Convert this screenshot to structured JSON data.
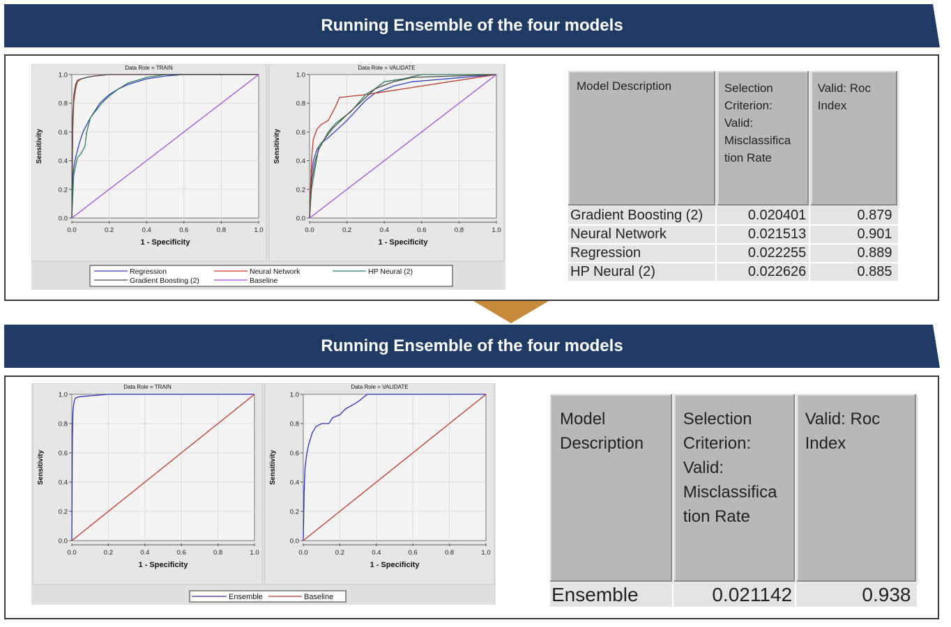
{
  "banners": [
    "Running Ensemble of the four models",
    "Running Ensemble of the four models"
  ],
  "plots": {
    "data_role_train": "Data Role = TRAIN",
    "data_role_validate": "Data Role = VALIDATE",
    "xlabel": "1 - Specificity",
    "ylabel": "Sensitivity",
    "ticks": [
      "0.0",
      "0.2",
      "0.4",
      "0.6",
      "0.8",
      "1.0"
    ]
  },
  "colors": {
    "banner": "#1f3b63",
    "arrow": "#c58a3b",
    "regression": "#2f3fbf",
    "neural_network": "#c0392b",
    "hp_neural": "#2e7d5b",
    "gradient_boosting": "#4a4a4a",
    "baseline": "#a050e0",
    "ensemble": "#2a2abf",
    "ensemble_baseline": "#c0392b"
  },
  "chart_data": [
    {
      "type": "line",
      "title": "Data Role = TRAIN",
      "xlabel": "1 - Specificity",
      "ylabel": "Sensitivity",
      "xlim": [
        0,
        1
      ],
      "ylim": [
        0,
        1
      ],
      "grid": true,
      "series": [
        {
          "name": "Regression",
          "color": "#2f3fbf",
          "x": [
            0,
            0.005,
            0.01,
            0.02,
            0.04,
            0.06,
            0.08,
            0.1,
            0.12,
            0.15,
            0.2,
            0.25,
            0.3,
            0.4,
            0.5,
            0.6,
            1
          ],
          "y": [
            0,
            0.25,
            0.35,
            0.42,
            0.52,
            0.6,
            0.65,
            0.7,
            0.74,
            0.8,
            0.86,
            0.9,
            0.93,
            0.97,
            0.99,
            1,
            1
          ]
        },
        {
          "name": "Neural Network",
          "color": "#c0392b",
          "x": [
            0,
            0.005,
            0.01,
            0.02,
            0.03,
            0.05,
            0.08,
            0.12,
            0.2,
            0.4,
            1
          ],
          "y": [
            0,
            0.6,
            0.8,
            0.9,
            0.95,
            0.97,
            0.98,
            0.99,
            1,
            1,
            1
          ]
        },
        {
          "name": "HP Neural (2)",
          "color": "#2e7d5b",
          "x": [
            0,
            0.01,
            0.03,
            0.05,
            0.07,
            0.08,
            0.1,
            0.13,
            0.16,
            0.2,
            0.25,
            0.3,
            0.4,
            0.5,
            1
          ],
          "y": [
            0,
            0.3,
            0.42,
            0.45,
            0.5,
            0.6,
            0.7,
            0.75,
            0.8,
            0.85,
            0.9,
            0.94,
            0.98,
            1,
            1
          ]
        },
        {
          "name": "Gradient Boosting (2)",
          "color": "#4a4a4a",
          "x": [
            0,
            0.005,
            0.01,
            0.02,
            0.03,
            0.05,
            0.08,
            0.12,
            0.2,
            0.3,
            1
          ],
          "y": [
            0,
            0.7,
            0.85,
            0.93,
            0.96,
            0.97,
            0.98,
            0.99,
            1,
            1,
            1
          ]
        },
        {
          "name": "Baseline",
          "color": "#a050e0",
          "x": [
            0,
            1
          ],
          "y": [
            0,
            1
          ]
        }
      ]
    },
    {
      "type": "line",
      "title": "Data Role = VALIDATE",
      "xlabel": "1 - Specificity",
      "ylabel": "Sensitivity",
      "xlim": [
        0,
        1
      ],
      "ylim": [
        0,
        1
      ],
      "grid": true,
      "series": [
        {
          "name": "Regression",
          "color": "#2f3fbf",
          "x": [
            0,
            0.01,
            0.02,
            0.04,
            0.06,
            0.1,
            0.15,
            0.2,
            0.25,
            0.3,
            0.35,
            0.45,
            0.55,
            1
          ],
          "y": [
            0,
            0.3,
            0.4,
            0.48,
            0.52,
            0.56,
            0.62,
            0.68,
            0.75,
            0.82,
            0.87,
            0.92,
            0.95,
            1
          ]
        },
        {
          "name": "Neural Network",
          "color": "#c0392b",
          "x": [
            0,
            0.01,
            0.02,
            0.04,
            0.06,
            0.1,
            0.14,
            0.16,
            0.3,
            0.5,
            1
          ],
          "y": [
            0,
            0.4,
            0.55,
            0.62,
            0.65,
            0.68,
            0.78,
            0.84,
            0.86,
            0.9,
            1
          ]
        },
        {
          "name": "HP Neural (2)",
          "color": "#2e7d5b",
          "x": [
            0,
            0.01,
            0.03,
            0.05,
            0.08,
            0.1,
            0.14,
            0.18,
            0.22,
            0.26,
            0.3,
            0.35,
            0.4,
            0.5,
            0.6,
            1
          ],
          "y": [
            0,
            0.2,
            0.35,
            0.5,
            0.55,
            0.6,
            0.66,
            0.7,
            0.74,
            0.8,
            0.86,
            0.9,
            0.95,
            0.97,
            1,
            1
          ]
        },
        {
          "name": "Gradient Boosting (2)",
          "color": "#4a4a4a",
          "x": [
            0,
            0.01,
            0.03,
            0.05,
            0.08,
            0.12,
            0.16,
            0.2,
            0.25,
            0.3,
            0.35,
            0.45,
            0.55,
            1
          ],
          "y": [
            0,
            0.25,
            0.4,
            0.48,
            0.55,
            0.62,
            0.67,
            0.72,
            0.78,
            0.84,
            0.9,
            0.95,
            0.98,
            1
          ]
        },
        {
          "name": "Baseline",
          "color": "#a050e0",
          "x": [
            0,
            1
          ],
          "y": [
            0,
            1
          ]
        }
      ]
    },
    {
      "type": "line",
      "title": "Data Role = TRAIN",
      "xlabel": "1 - Specificity",
      "ylabel": "Sensitivity",
      "xlim": [
        0,
        1
      ],
      "ylim": [
        0,
        1
      ],
      "grid": true,
      "series": [
        {
          "name": "Ensemble",
          "color": "#2a2abf",
          "x": [
            0,
            0.003,
            0.006,
            0.01,
            0.015,
            0.02,
            0.03,
            0.05,
            0.1,
            0.2,
            1
          ],
          "y": [
            0,
            0.7,
            0.88,
            0.93,
            0.96,
            0.975,
            0.98,
            0.985,
            0.99,
            1,
            1
          ]
        },
        {
          "name": "Baseline",
          "color": "#c0392b",
          "x": [
            0,
            1
          ],
          "y": [
            0,
            1
          ]
        }
      ]
    },
    {
      "type": "line",
      "title": "Data Role = VALIDATE",
      "xlabel": "1 - Specificity",
      "ylabel": "Sensitivity",
      "xlim": [
        0,
        1
      ],
      "ylim": [
        0,
        1
      ],
      "grid": true,
      "series": [
        {
          "name": "Ensemble",
          "color": "#2a2abf",
          "x": [
            0,
            0.005,
            0.01,
            0.02,
            0.03,
            0.05,
            0.07,
            0.1,
            0.14,
            0.16,
            0.2,
            0.23,
            0.26,
            0.3,
            0.35,
            0.4,
            0.5,
            1
          ],
          "y": [
            0,
            0.35,
            0.5,
            0.6,
            0.66,
            0.74,
            0.78,
            0.8,
            0.8,
            0.84,
            0.86,
            0.9,
            0.92,
            0.95,
            1,
            1,
            1,
            1
          ]
        },
        {
          "name": "Baseline",
          "color": "#c0392b",
          "x": [
            0,
            1
          ],
          "y": [
            0,
            1
          ]
        }
      ]
    },
    {
      "type": "table",
      "headers": [
        "Model Description",
        "Selection Criterion: Valid: Misclassifica tion Rate",
        "Valid: Roc Index"
      ],
      "rows": [
        [
          "Gradient Boosting (2)",
          "0.020401",
          "0.879"
        ],
        [
          "Neural Network",
          "0.021513",
          "0.901"
        ],
        [
          "Regression",
          "0.022255",
          "0.889"
        ],
        [
          "HP Neural (2)",
          "0.022626",
          "0.885"
        ]
      ]
    },
    {
      "type": "table",
      "headers": [
        "Model Description",
        "Selection Criterion: Valid: Misclassifica tion Rate",
        "Valid: Roc Index"
      ],
      "rows": [
        [
          "Ensemble",
          "0.021142",
          "0.938"
        ]
      ]
    }
  ],
  "legend_top": [
    "Regression",
    "Neural Network",
    "HP Neural (2)",
    "Gradient Boosting (2)",
    "Baseline"
  ],
  "legend_bottom": [
    "Ensemble",
    "Baseline"
  ],
  "table_top": {
    "h1": "Model Description",
    "h2": [
      "Selection",
      "Criterion:",
      "Valid:",
      "Misclassifica",
      "tion Rate"
    ],
    "h3": [
      "Valid: Roc",
      "Index"
    ],
    "rows": [
      [
        "Gradient Boosting (2)",
        "0.020401",
        "0.879"
      ],
      [
        "Neural Network",
        "0.021513",
        "0.901"
      ],
      [
        "Regression",
        "0.022255",
        "0.889"
      ],
      [
        "HP Neural (2)",
        "0.022626",
        "0.885"
      ]
    ]
  },
  "table_bottom": {
    "h1": [
      "Model",
      "Description"
    ],
    "h2": [
      "Selection",
      "Criterion:",
      "Valid:",
      "Misclassifica",
      "tion Rate"
    ],
    "h3": [
      "Valid: Roc",
      "Index"
    ],
    "rows": [
      [
        "Ensemble",
        "0.021142",
        "0.938"
      ]
    ]
  }
}
